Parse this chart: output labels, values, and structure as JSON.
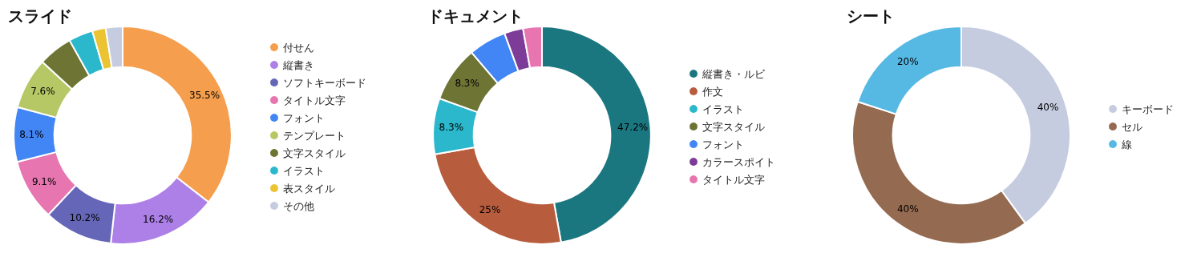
{
  "chart_data": [
    {
      "type": "donut",
      "title": "スライド",
      "legend": "right",
      "categories": [
        "付せん",
        "縦書き",
        "ソフトキーボード",
        "タイトル文字",
        "フォント",
        "テンプレート",
        "文字スタイル",
        "イラスト",
        "表スタイル",
        "その他"
      ],
      "values": [
        35.5,
        16.2,
        10.2,
        9.1,
        8.1,
        7.6,
        5.1,
        3.6,
        2.0,
        2.5
      ],
      "value_labels": [
        "35.5%",
        "16.2%",
        "10.2%",
        "9.1%",
        "8.1%",
        "7.6%",
        null,
        null,
        null,
        null
      ],
      "colors": [
        "#f59e4e",
        "#ad80e8",
        "#6666b8",
        "#e775b0",
        "#4285f4",
        "#b5c865",
        "#6e7434",
        "#2bb8cc",
        "#ebc333",
        "#c5cce0"
      ]
    },
    {
      "type": "donut",
      "title": "ドキュメント",
      "legend": "right",
      "categories": [
        "縦書き・ルビ",
        "作文",
        "イラスト",
        "文字スタイル",
        "フォント",
        "カラースポイト",
        "タイトル文字"
      ],
      "values": [
        47.2,
        25,
        8.3,
        8.3,
        5.6,
        2.8,
        2.8
      ],
      "value_labels": [
        "47.2%",
        "25%",
        "8.3%",
        "8.3%",
        null,
        null,
        null
      ],
      "colors": [
        "#1b777f",
        "#b85c3e",
        "#2bb8cc",
        "#6e7434",
        "#4285f4",
        "#7d3c98",
        "#e775b0"
      ]
    },
    {
      "type": "donut",
      "title": "シート",
      "legend": "right",
      "categories": [
        "キーボード",
        "セル",
        "線"
      ],
      "values": [
        40,
        40,
        20
      ],
      "value_labels": [
        "40%",
        "40%",
        "20%"
      ],
      "colors": [
        "#c5cce0",
        "#946a50",
        "#56b9e4"
      ]
    }
  ]
}
